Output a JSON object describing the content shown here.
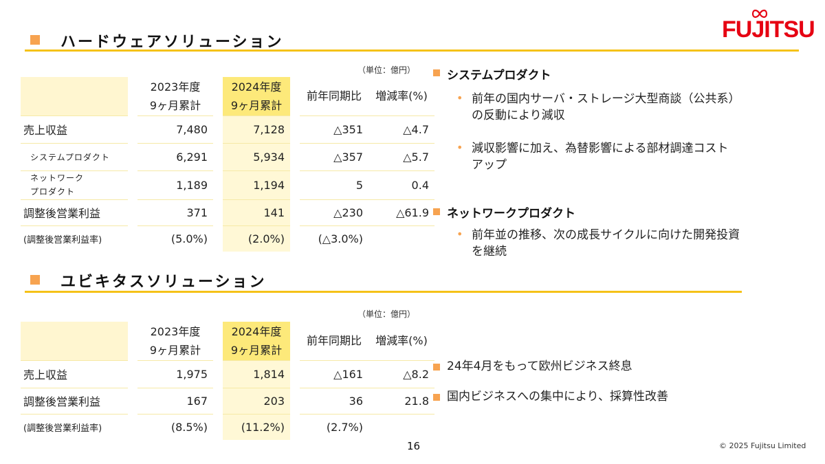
{
  "brand": {
    "logo_text": "FUJITSU",
    "logo_color": "#e60012",
    "accent_color": "#f5c218",
    "bullet_color": "#f7a350"
  },
  "hardware": {
    "title": "ハードウェアソリューション",
    "unit": "（単位：億円）",
    "headers": {
      "fy2023_line1": "2023年度",
      "fy2023_line2": "9ヶ月累計",
      "fy2024_line1": "2024年度",
      "fy2024_line2": "9ヶ月累計",
      "yoy": "前年同期比",
      "rate": "増減率(%)"
    },
    "rows": [
      {
        "label": "売上収益",
        "fy2023": "7,480",
        "fy2024": "7,128",
        "yoy": "△351",
        "rate": "△4.7"
      },
      {
        "label": "システムプロダクト",
        "fy2023": "6,291",
        "fy2024": "5,934",
        "yoy": "△357",
        "rate": "△5.7"
      },
      {
        "label_line1": "ネットワーク",
        "label_line2": "プロダクト",
        "fy2023": "1,189",
        "fy2024": "1,194",
        "yoy": "5",
        "rate": "0.4"
      },
      {
        "label": "調整後営業利益",
        "fy2023": "371",
        "fy2024": "141",
        "yoy": "△230",
        "rate": "△61.9"
      },
      {
        "label": "(調整後営業利益率)",
        "fy2023": "(5.0%)",
        "fy2024": "(2.0%)",
        "yoy": "(△3.0%)",
        "rate": ""
      }
    ],
    "notes": [
      {
        "heading": "システムプロダクト",
        "bullets": [
          {
            "line1": "前年の国内サーバ・ストレージ大型商談（公共系）",
            "line2": "の反動により減収"
          },
          {
            "line1": "減収影響に加え、為替影響による部材調達コスト",
            "line2": "アップ"
          }
        ]
      },
      {
        "heading": "ネットワークプロダクト",
        "bullets": [
          {
            "line1": "前年並の推移、次の成長サイクルに向けた開発投資",
            "line2": "を継続"
          }
        ]
      }
    ]
  },
  "ubiquitous": {
    "title": "ユビキタスソリューション",
    "unit": "（単位：億円）",
    "headers": {
      "fy2023_line1": "2023年度",
      "fy2023_line2": "9ヶ月累計",
      "fy2024_line1": "2024年度",
      "fy2024_line2": "9ヶ月累計",
      "yoy": "前年同期比",
      "rate": "増減率(%)"
    },
    "rows": [
      {
        "label": "売上収益",
        "fy2023": "1,975",
        "fy2024": "1,814",
        "yoy": "△161",
        "rate": "△8.2"
      },
      {
        "label": "調整後営業利益",
        "fy2023": "167",
        "fy2024": "203",
        "yoy": "36",
        "rate": "21.8"
      },
      {
        "label": "(調整後営業利益率)",
        "fy2023": "(8.5%)",
        "fy2024": "(11.2%)",
        "yoy": "(2.7%)",
        "rate": ""
      }
    ],
    "notes": [
      "24年4月をもって欧州ビジネス終息",
      "国内ビジネスへの集中により、採算性改善"
    ]
  },
  "footer": {
    "page_number": "16",
    "copyright": "© 2025 Fujitsu Limited"
  }
}
